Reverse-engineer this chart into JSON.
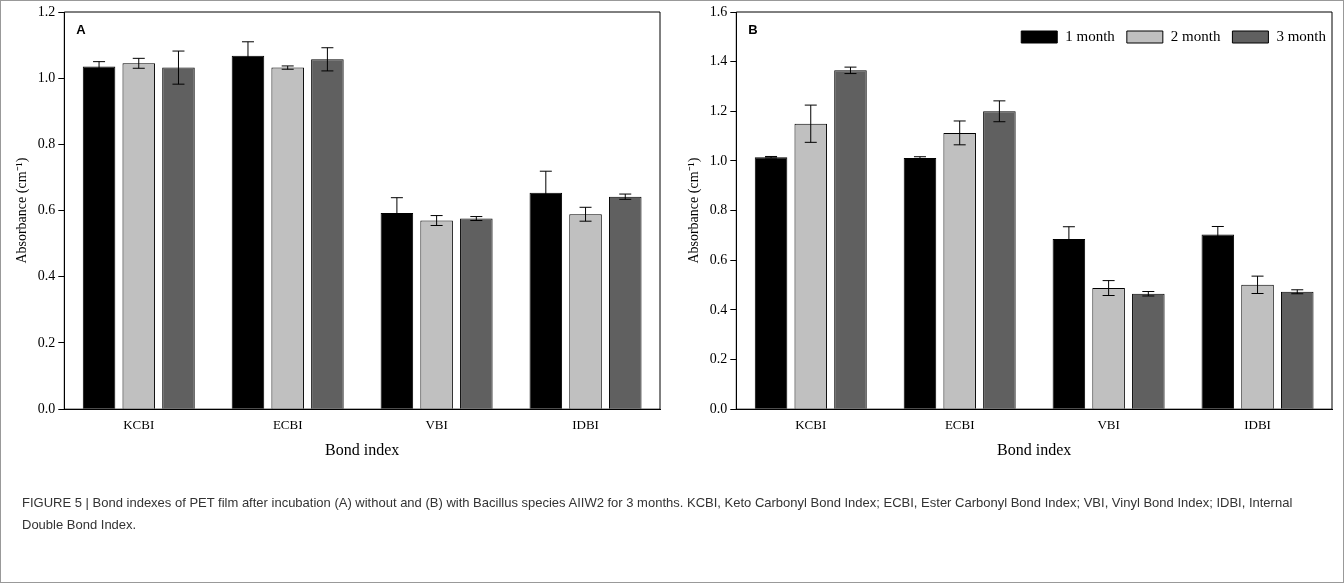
{
  "chart_data": [
    {
      "type": "bar",
      "xlabel": "Bond index",
      "ylabel": "Absorbance (cm⁻¹)",
      "categories": [
        "KCBI",
        "ECBI",
        "VBI",
        "IDBI"
      ],
      "series": [
        {
          "color": "#000000",
          "values": [
            1.035,
            1.068,
            0.593,
            0.654
          ],
          "errors": [
            0.015,
            0.042,
            0.046,
            0.065
          ]
        },
        {
          "color": "#c0c0c0",
          "values": [
            1.045,
            1.032,
            0.57,
            0.589
          ],
          "errors": [
            0.015,
            0.005,
            0.015,
            0.021
          ]
        },
        {
          "color": "#606060",
          "values": [
            1.032,
            1.057,
            0.576,
            0.642
          ],
          "errors": [
            0.05,
            0.035,
            0.006,
            0.008
          ]
        }
      ],
      "ylim": [
        0,
        1.2
      ],
      "yticks": [
        {
          "value": 0,
          "label": "0.0"
        },
        {
          "value": 0.2,
          "label": "0.2"
        },
        {
          "value": 0.4,
          "label": "0.4"
        },
        {
          "value": 0.6,
          "label": "0.6"
        },
        {
          "value": 0.8,
          "label": "0.8"
        },
        {
          "value": 1.0,
          "label": "1.0"
        },
        {
          "value": 1.2,
          "label": "1.2"
        }
      ],
      "grid": false,
      "legend": false,
      "annotations": [
        "A",
        "FIGURE 5 | Bond indexes of PET film after incubation (A) without and (B) with Bacillus species AIIW2 for 3 months. KCBI, Keto Carbonyl Bond Index; ECBI, Ester Carbonyl Bond Index; VBI, Vinyl Bond Index; IDBI, Internal Double Bond Index."
      ]
    },
    {
      "type": "bar",
      "xlabel": "Bond index",
      "ylabel": "Absorbance (cm⁻¹)",
      "categories": [
        "KCBI",
        "ECBI",
        "VBI",
        "IDBI"
      ],
      "series": [
        {
          "name": "1 month",
          "color": "#000000",
          "values": [
            1.015,
            1.012,
            0.686,
            0.704
          ],
          "errors": [
            0.003,
            0.005,
            0.049,
            0.032
          ]
        },
        {
          "name": "2 month",
          "color": "#c0c0c0",
          "values": [
            1.15,
            1.113,
            0.488,
            0.501
          ],
          "errors": [
            0.075,
            0.048,
            0.03,
            0.035
          ]
        },
        {
          "name": "3 month",
          "color": "#606060",
          "values": [
            1.365,
            1.2,
            0.465,
            0.473
          ],
          "errors": [
            0.013,
            0.042,
            0.009,
            0.008
          ]
        }
      ],
      "ylim": [
        0,
        1.6
      ],
      "yticks": [
        {
          "value": 0,
          "label": "0.0"
        },
        {
          "value": 0.2,
          "label": "0.2"
        },
        {
          "value": 0.4,
          "label": "0.4"
        },
        {
          "value": 0.6,
          "label": "0.6"
        },
        {
          "value": 0.8,
          "label": "0.8"
        },
        {
          "value": 1.0,
          "label": "1.0"
        },
        {
          "value": 1.2,
          "label": "1.2"
        },
        {
          "value": 1.4,
          "label": "1.4"
        },
        {
          "value": 1.6,
          "label": "1.6"
        }
      ],
      "grid": false,
      "legend": "top right",
      "annotations": [
        "B"
      ]
    }
  ]
}
